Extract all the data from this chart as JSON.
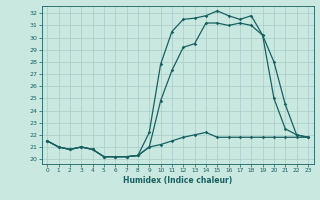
{
  "xlabel": "Humidex (Indice chaleur)",
  "bg_color": "#c8e8e0",
  "grid_color": "#a8ccc8",
  "line_color": "#1a6060",
  "xlim": [
    -0.5,
    23.5
  ],
  "ylim": [
    19.6,
    32.6
  ],
  "x_ticks": [
    0,
    1,
    2,
    3,
    4,
    5,
    6,
    7,
    8,
    9,
    10,
    11,
    12,
    13,
    14,
    15,
    16,
    17,
    18,
    19,
    20,
    21,
    22,
    23
  ],
  "y_ticks": [
    20,
    21,
    22,
    23,
    24,
    25,
    26,
    27,
    28,
    29,
    30,
    31,
    32
  ],
  "series": {
    "line1": [
      21.5,
      21.0,
      20.8,
      21.0,
      20.8,
      20.2,
      20.2,
      20.2,
      20.3,
      22.2,
      27.8,
      30.5,
      31.5,
      31.6,
      31.8,
      32.2,
      31.8,
      31.5,
      31.8,
      30.2,
      28.0,
      24.5,
      22.0,
      21.8
    ],
    "line2": [
      21.5,
      21.0,
      20.8,
      21.0,
      20.8,
      20.2,
      20.2,
      20.2,
      20.3,
      21.0,
      24.8,
      27.3,
      29.2,
      29.5,
      31.2,
      31.2,
      31.0,
      31.2,
      31.0,
      30.2,
      25.0,
      22.5,
      22.0,
      21.8
    ],
    "line3": [
      21.5,
      21.0,
      20.8,
      21.0,
      20.8,
      20.2,
      20.2,
      20.2,
      20.3,
      21.0,
      21.2,
      21.5,
      21.8,
      22.0,
      22.2,
      21.8,
      21.8,
      21.8,
      21.8,
      21.8,
      21.8,
      21.8,
      21.8,
      21.8
    ]
  }
}
